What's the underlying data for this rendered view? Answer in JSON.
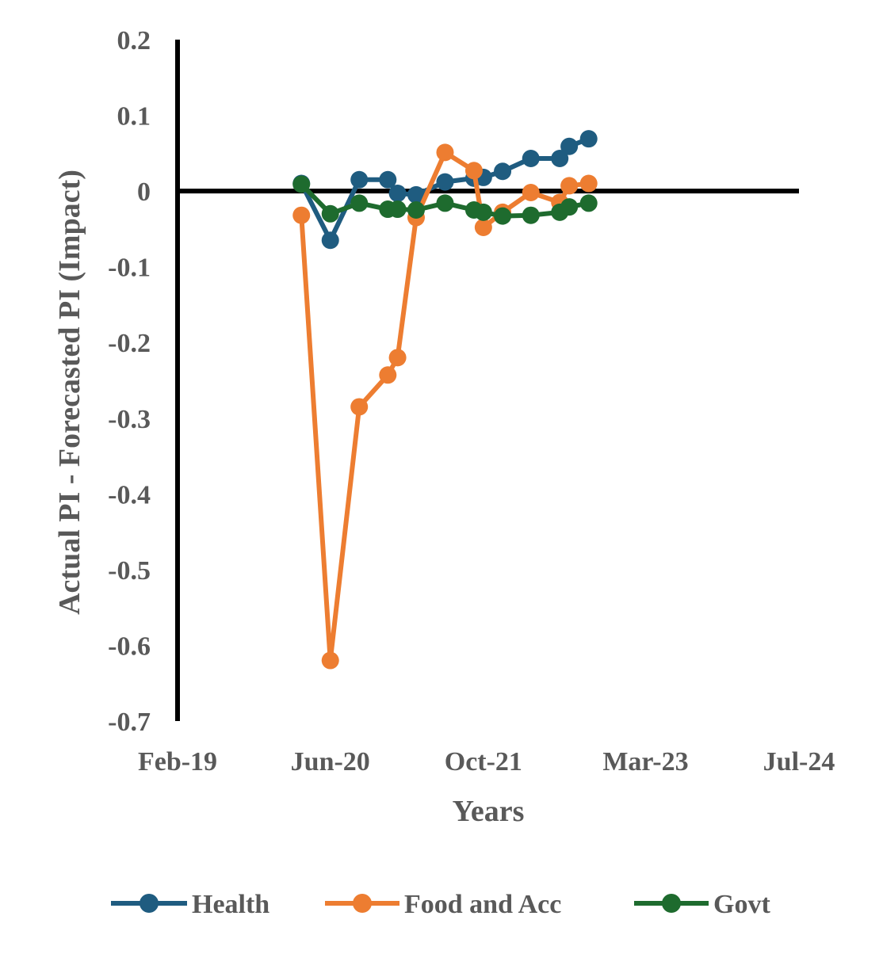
{
  "chart_data": {
    "type": "line",
    "xlabel": "Years",
    "ylabel": "Actual PI - Forecasted PI (Impact)",
    "ylim": [
      -0.7,
      0.2
    ],
    "yticks": [
      0.2,
      0.1,
      0,
      -0.1,
      -0.2,
      -0.3,
      -0.4,
      -0.5,
      -0.6,
      -0.7
    ],
    "ytick_labels": [
      "0.2",
      "0.1",
      "0",
      "-0.1",
      "-0.2",
      "-0.3",
      "-0.4",
      "-0.5",
      "-0.6",
      "-0.7"
    ],
    "xlim": [
      "2019-02-01",
      "2024-07-01"
    ],
    "xticks": [
      "2019-02-01",
      "2020-06-01",
      "2021-10-01",
      "2023-03-01",
      "2024-07-01"
    ],
    "xtick_labels": [
      "Feb-19",
      "Jun-20",
      "Oct-21",
      "Mar-23",
      "Jul-24"
    ],
    "grid": false,
    "legend_position": "bottom",
    "series": [
      {
        "name": "Health",
        "color": "#1F5C80",
        "x": [
          "2020-03-01",
          "2020-06-01",
          "2020-09-01",
          "2020-12-01",
          "2021-01-01",
          "2021-03-01",
          "2021-06-01",
          "2021-09-01",
          "2021-10-01",
          "2021-12-01",
          "2022-03-01",
          "2022-06-01",
          "2022-07-01",
          "2022-09-01"
        ],
        "values": [
          0.01,
          -0.065,
          0.015,
          0.015,
          -0.003,
          -0.005,
          0.012,
          0.017,
          0.018,
          0.026,
          0.043,
          0.043,
          0.059,
          0.069
        ]
      },
      {
        "name": "Food and Acc",
        "color": "#ED7D31",
        "x": [
          "2020-03-01",
          "2020-06-01",
          "2020-09-01",
          "2020-12-01",
          "2021-01-01",
          "2021-03-01",
          "2021-06-01",
          "2021-09-01",
          "2021-10-01",
          "2021-12-01",
          "2022-03-01",
          "2022-06-01",
          "2022-07-01",
          "2022-09-01"
        ],
        "values": [
          -0.032,
          -0.62,
          -0.285,
          -0.243,
          -0.22,
          -0.035,
          0.051,
          0.027,
          -0.048,
          -0.028,
          -0.002,
          -0.015,
          0.007,
          0.01
        ]
      },
      {
        "name": "Govt",
        "color": "#1E6B2E",
        "x": [
          "2020-03-01",
          "2020-06-01",
          "2020-09-01",
          "2020-12-01",
          "2021-01-01",
          "2021-03-01",
          "2021-06-01",
          "2021-09-01",
          "2021-10-01",
          "2021-12-01",
          "2022-03-01",
          "2022-06-01",
          "2022-07-01",
          "2022-09-01"
        ],
        "values": [
          0.009,
          -0.03,
          -0.016,
          -0.024,
          -0.024,
          -0.025,
          -0.016,
          -0.025,
          -0.028,
          -0.033,
          -0.032,
          -0.028,
          -0.021,
          -0.016
        ]
      }
    ]
  }
}
